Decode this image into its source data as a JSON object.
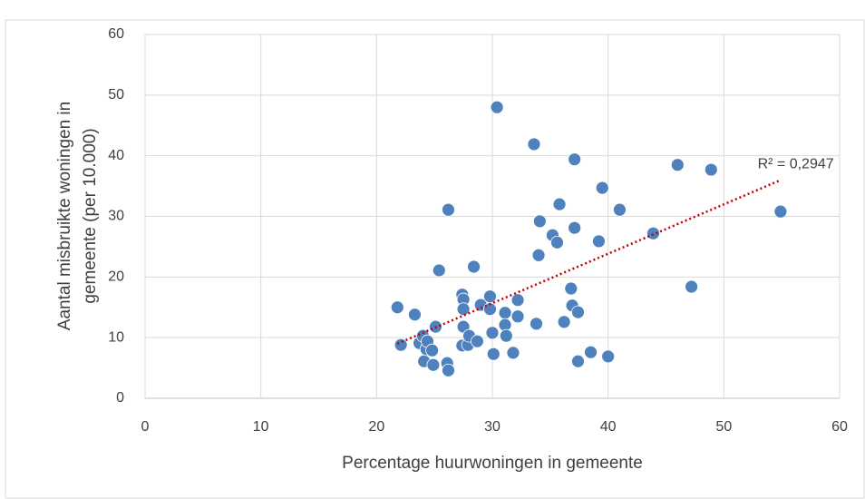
{
  "chart_data": {
    "type": "scatter",
    "x_label": "Percentage huurwoningen in gemeente",
    "y_label": [
      "Aantal misbruikte woningen in",
      "gemeente (per 10.000)"
    ],
    "xlim": [
      0,
      60
    ],
    "xticks": [
      0,
      10,
      20,
      30,
      40,
      50,
      60
    ],
    "ylim": [
      0,
      60
    ],
    "yticks": [
      0,
      10,
      20,
      30,
      40,
      50,
      60
    ],
    "grid": true,
    "color": "#4f81bd",
    "x": [
      21.8,
      22.1,
      23.3,
      23.7,
      24.0,
      24.1,
      24.3,
      24.4,
      24.8,
      24.9,
      25.1,
      25.4,
      26.1,
      26.2,
      26.2,
      27.4,
      27.5,
      27.5,
      27.5,
      27.4,
      27.9,
      28.0,
      28.4,
      28.7,
      29.0,
      29.8,
      29.8,
      30.0,
      30.1,
      30.4,
      31.1,
      31.1,
      31.2,
      31.8,
      32.2,
      32.2,
      33.6,
      33.8,
      34.0,
      34.1,
      35.2,
      35.6,
      35.8,
      36.2,
      36.8,
      36.9,
      37.1,
      37.1,
      37.4,
      37.4,
      38.5,
      39.2,
      39.5,
      40.0,
      41.0,
      43.9,
      46.0,
      47.2,
      48.9,
      54.9
    ],
    "values": [
      15.0,
      8.8,
      13.8,
      9.1,
      10.3,
      6.1,
      8.1,
      9.4,
      7.9,
      5.5,
      11.8,
      21.1,
      5.8,
      31.1,
      4.6,
      17.1,
      16.3,
      14.7,
      11.8,
      8.7,
      8.8,
      10.3,
      21.7,
      9.4,
      15.4,
      16.8,
      14.7,
      10.8,
      7.3,
      48.0,
      14.1,
      12.1,
      10.3,
      7.5,
      16.2,
      13.5,
      41.9,
      12.3,
      23.6,
      29.2,
      26.9,
      25.7,
      32.0,
      12.6,
      18.1,
      15.3,
      39.4,
      28.1,
      14.2,
      6.1,
      7.6,
      25.9,
      34.7,
      6.9,
      31.1,
      27.2,
      38.5,
      18.4,
      37.7,
      30.8
    ],
    "trendline": {
      "x": [
        21.8,
        54.8
      ],
      "values": [
        9.0,
        35.9
      ],
      "color": "#c00000",
      "label": "R² = 0,2947"
    }
  }
}
